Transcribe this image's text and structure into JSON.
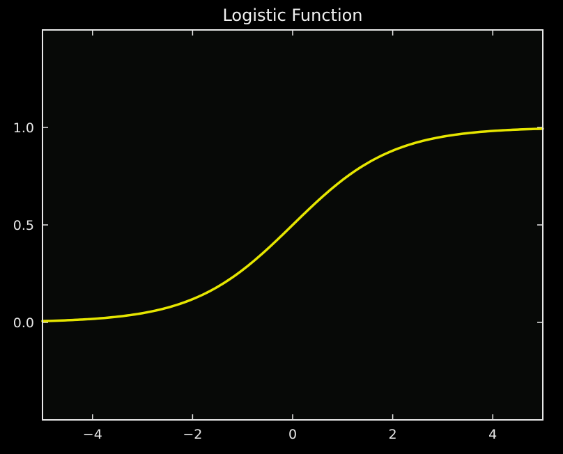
{
  "chart_data": {
    "type": "line",
    "title": "Logistic Function",
    "xlabel": "",
    "ylabel": "",
    "xlim": [
      -5,
      5
    ],
    "ylim": [
      -0.5,
      1.5
    ],
    "x_ticks": [
      -4,
      -2,
      0,
      2,
      4
    ],
    "x_tick_labels": [
      "−4",
      "−2",
      "0",
      "2",
      "4"
    ],
    "y_ticks": [
      0.0,
      0.5,
      1.0
    ],
    "y_tick_labels": [
      "0.0",
      "0.5",
      "1.0"
    ],
    "grid": false,
    "series": [
      {
        "color": "#e6e600",
        "x": [
          -5,
          -4.5,
          -4,
          -3.5,
          -3,
          -2.5,
          -2,
          -1.5,
          -1,
          -0.5,
          0,
          0.5,
          1,
          1.5,
          2,
          2.5,
          3,
          3.5,
          4,
          4.5,
          5
        ],
        "y": [
          0.007,
          0.011,
          0.018,
          0.029,
          0.047,
          0.076,
          0.119,
          0.182,
          0.269,
          0.378,
          0.5,
          0.622,
          0.731,
          0.818,
          0.881,
          0.924,
          0.953,
          0.971,
          0.982,
          0.989,
          0.993
        ]
      }
    ],
    "colors": {
      "background": "#000000",
      "plot_area": "#070907",
      "axes": "#e8e8e8",
      "line": "#e6e600"
    }
  }
}
